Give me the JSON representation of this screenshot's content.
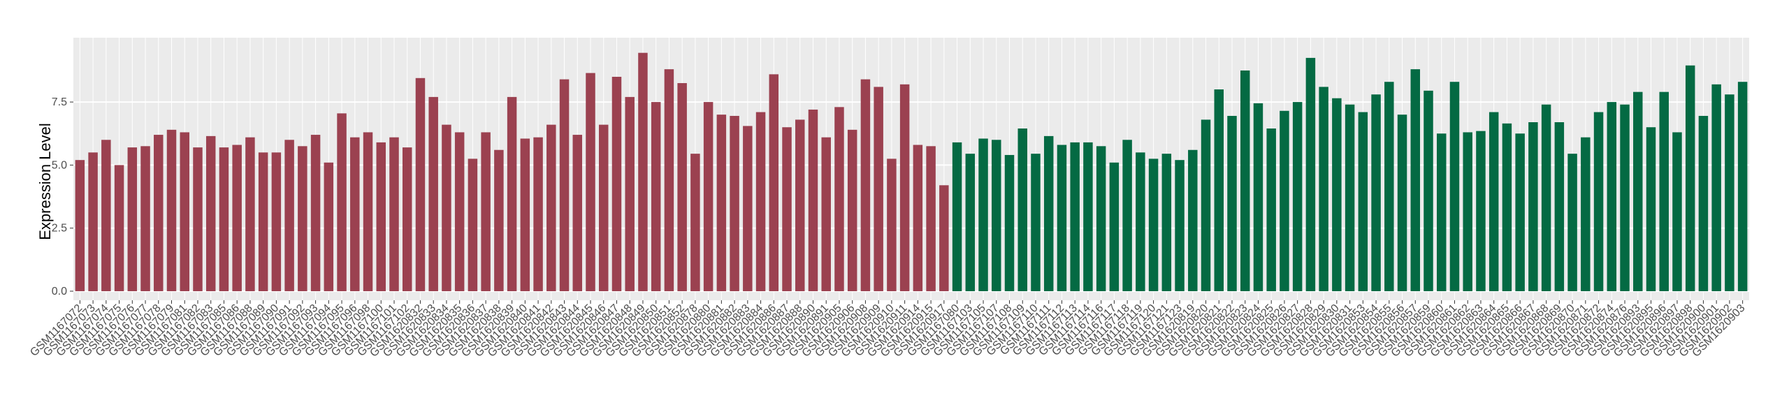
{
  "chart_data": {
    "type": "bar",
    "y_label": "Expression Level",
    "categories": [
      "GSM1167072",
      "GSM1167073",
      "GSM1167074",
      "GSM1167075",
      "GSM1167076",
      "GSM1167077",
      "GSM1167078",
      "GSM1167079",
      "GSM1167081",
      "GSM1167082",
      "GSM1167083",
      "GSM1167085",
      "GSM1167086",
      "GSM1167088",
      "GSM1167089",
      "GSM1167090",
      "GSM1167091",
      "GSM1167092",
      "GSM1167093",
      "GSM1167094",
      "GSM1167095",
      "GSM1167096",
      "GSM1167098",
      "GSM1167100",
      "GSM1167101",
      "GSM1167102",
      "GSM1620832",
      "GSM1620833",
      "GSM1620834",
      "GSM1620835",
      "GSM1620836",
      "GSM1620837",
      "GSM1620838",
      "GSM1620839",
      "GSM1620840",
      "GSM1620841",
      "GSM1620842",
      "GSM1620843",
      "GSM1620844",
      "GSM1620845",
      "GSM1620846",
      "GSM1620847",
      "GSM1620848",
      "GSM1620849",
      "GSM1620850",
      "GSM1620851",
      "GSM1620852",
      "GSM1620878",
      "GSM1620880",
      "GSM1620881",
      "GSM1620882",
      "GSM1620883",
      "GSM1620884",
      "GSM1620886",
      "GSM1620887",
      "GSM1620888",
      "GSM1620890",
      "GSM1620891",
      "GSM1620905",
      "GSM1620906",
      "GSM1620908",
      "GSM1620909",
      "GSM1620910",
      "GSM1620911",
      "GSM1620914",
      "GSM1620915",
      "GSM1620917",
      "GSM1167080",
      "GSM1167103",
      "GSM1167105",
      "GSM1167107",
      "GSM1167108",
      "GSM1167109",
      "GSM1167110",
      "GSM1167111",
      "GSM1167112",
      "GSM1167113",
      "GSM1167114",
      "GSM1167116",
      "GSM1167117",
      "GSM1167118",
      "GSM1167119",
      "GSM1167120",
      "GSM1167121",
      "GSM1167123",
      "GSM1620819",
      "GSM1620820",
      "GSM1620821",
      "GSM1620822",
      "GSM1620823",
      "GSM1620824",
      "GSM1620825",
      "GSM1620826",
      "GSM1620827",
      "GSM1620828",
      "GSM1620829",
      "GSM1620830",
      "GSM1620831",
      "GSM1620853",
      "GSM1620854",
      "GSM1620855",
      "GSM1620856",
      "GSM1620857",
      "GSM1620859",
      "GSM1620860",
      "GSM1620861",
      "GSM1620862",
      "GSM1620863",
      "GSM1620864",
      "GSM1620865",
      "GSM1620866",
      "GSM1620867",
      "GSM1620868",
      "GSM1620869",
      "GSM1620870",
      "GSM1620871",
      "GSM1620872",
      "GSM1620874",
      "GSM1620876",
      "GSM1620893",
      "GSM1620895",
      "GSM1620896",
      "GSM1620897",
      "GSM1620898",
      "GSM1620900",
      "GSM1620901",
      "GSM1620902",
      "GSM1620903"
    ],
    "series": [
      {
        "color": "#9b4150",
        "values": [
          5.2,
          5.5,
          6.0,
          5.0,
          5.7,
          5.75,
          6.2,
          6.4,
          6.3,
          5.7,
          6.15,
          5.7,
          5.8,
          6.1,
          5.5,
          5.5,
          6.0,
          5.75,
          6.2,
          5.1,
          7.05,
          6.1,
          6.3,
          5.9,
          6.1,
          5.7,
          8.45,
          7.7,
          6.6,
          6.3,
          5.25,
          6.3,
          5.6,
          7.7,
          6.05,
          6.1,
          6.6,
          8.4,
          6.2,
          8.65,
          6.6,
          8.5,
          7.7,
          9.45,
          7.5,
          8.8,
          8.25,
          5.45,
          7.5,
          7.0,
          6.95,
          6.55,
          7.1,
          8.6,
          6.5,
          6.8,
          7.2,
          6.1,
          7.3,
          6.4,
          8.4,
          8.1,
          5.25,
          8.2,
          5.8,
          5.75,
          4.2,
          null,
          null,
          null,
          null,
          null,
          null,
          null,
          null,
          null,
          null,
          null,
          null,
          null,
          null,
          null,
          null,
          null,
          null,
          null,
          null,
          null,
          null,
          null,
          null,
          null,
          null,
          null,
          null,
          null,
          null,
          null,
          null,
          null,
          null,
          null,
          null,
          null,
          null,
          null,
          null,
          null,
          null,
          null,
          null,
          null,
          null,
          null,
          null,
          null,
          null,
          null,
          null,
          null,
          null,
          null,
          null,
          null,
          null,
          null,
          null,
          null
        ]
      },
      {
        "color": "#046a43",
        "values": [
          null,
          null,
          null,
          null,
          null,
          null,
          null,
          null,
          null,
          null,
          null,
          null,
          null,
          null,
          null,
          null,
          null,
          null,
          null,
          null,
          null,
          null,
          null,
          null,
          null,
          null,
          null,
          null,
          null,
          null,
          null,
          null,
          null,
          null,
          null,
          null,
          null,
          null,
          null,
          null,
          null,
          null,
          null,
          null,
          null,
          null,
          null,
          null,
          null,
          null,
          null,
          null,
          null,
          null,
          null,
          null,
          null,
          null,
          null,
          null,
          null,
          null,
          null,
          null,
          null,
          null,
          null,
          5.9,
          5.45,
          6.05,
          6.0,
          5.4,
          6.45,
          5.45,
          6.15,
          5.8,
          5.9,
          5.9,
          5.75,
          5.1,
          6.0,
          5.5,
          5.25,
          5.45,
          5.2,
          5.6,
          6.8,
          8.0,
          6.95,
          8.75,
          7.45,
          6.45,
          7.15,
          7.5,
          9.25,
          8.1,
          7.65,
          7.4,
          7.1,
          7.8,
          8.3,
          7.0,
          8.8,
          7.95,
          6.25,
          8.3,
          6.3,
          6.35,
          7.1,
          6.65,
          6.25,
          6.7,
          7.4,
          6.7,
          5.45,
          6.1,
          7.1,
          7.5,
          7.4,
          7.9,
          6.5,
          7.9,
          6.3,
          8.95,
          6.95,
          8.2,
          7.8,
          8.3
        ]
      }
    ],
    "ylim": [
      -0.36,
      10.05
    ],
    "yticks": [
      {
        "value": 0,
        "label": "0.0"
      },
      2.5,
      {
        "value": 5,
        "label": "5.0"
      },
      7.5
    ],
    "grid": true
  }
}
